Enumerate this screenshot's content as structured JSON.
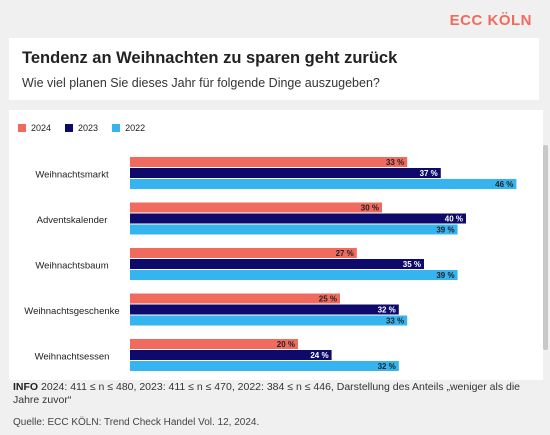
{
  "brand": "ECC KÖLN",
  "header": {
    "title": "Tendenz an Weihnachten zu sparen geht zurück",
    "subtitle": "Wie viel planen Sie dieses Jahr für folgende Dinge auszugeben?"
  },
  "info": {
    "label": "INFO",
    "text": "2024: 411 ≤ n ≤ 480, 2023: 411 ≤ n ≤ 470, 2022: 384 ≤ n ≤ 446, Darstellung des Anteils „weniger als die Jahre zuvor“"
  },
  "source": "Quelle: ECC KÖLN: Trend Check Handel Vol. 12, 2024.",
  "colors": {
    "2024": "#f06a5e",
    "2023": "#0d0a6b",
    "2022": "#35b4ef",
    "accent": "#f06a5e"
  },
  "chart_data": {
    "type": "bar",
    "orientation": "horizontal",
    "categories": [
      "Weihnachtsmarkt",
      "Adventskalender",
      "Weihnachtsbaum",
      "Weihnachtsgeschenke",
      "Weihnachtsessen"
    ],
    "series": [
      {
        "name": "2024",
        "values": [
          33,
          30,
          27,
          25,
          20
        ]
      },
      {
        "name": "2023",
        "values": [
          37,
          40,
          35,
          32,
          24
        ]
      },
      {
        "name": "2022",
        "values": [
          46,
          39,
          39,
          33,
          32
        ]
      }
    ],
    "value_suffix": " %",
    "legend_position": "top-left",
    "xlim": [
      0,
      100
    ]
  }
}
